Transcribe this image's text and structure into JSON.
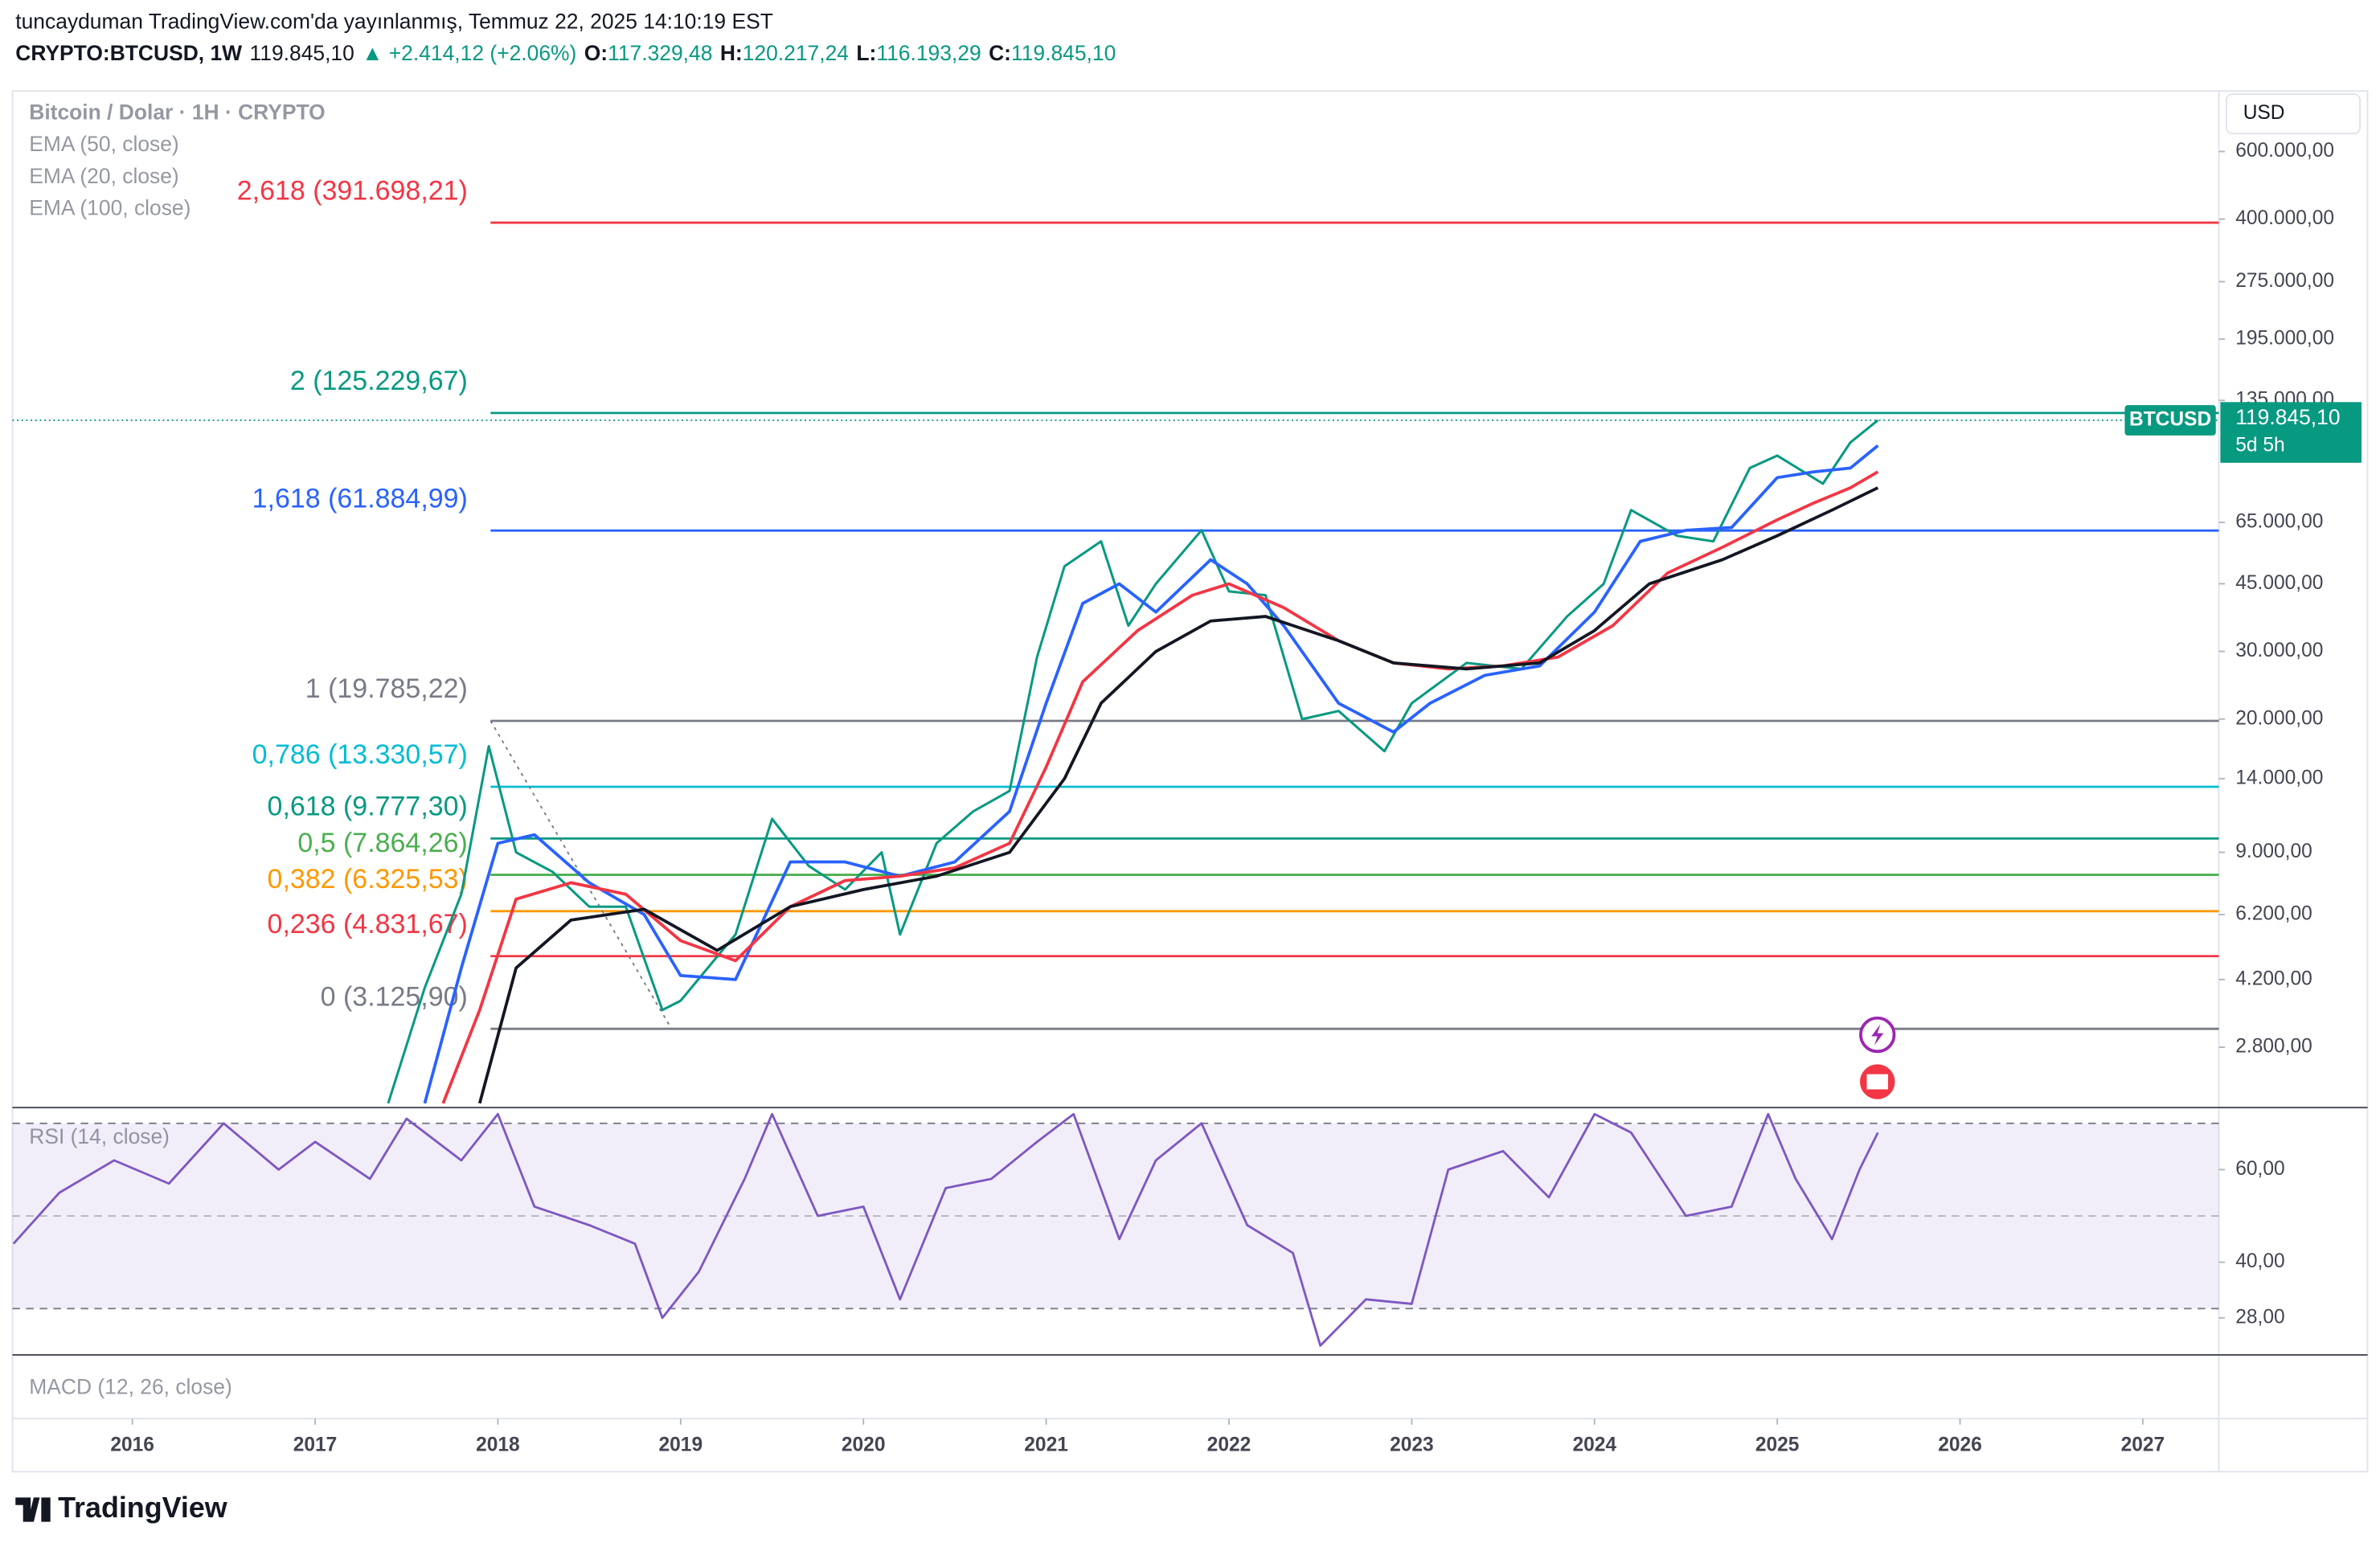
{
  "header": {
    "publisher": "tuncayduman TradingView.com'da yayınlanmış, Temmuz 22, 2025 14:10:19 EST",
    "symbol": "CRYPTO:BTCUSD, 1W",
    "last": "119.845,10",
    "change": "▲ +2.414,12 (+2.06%)",
    "ohlc": [
      {
        "key": "O:",
        "value": "117.329,48"
      },
      {
        "key": "H:",
        "value": "120.217,24"
      },
      {
        "key": "L:",
        "value": "116.193,29"
      },
      {
        "key": "C:",
        "value": "119.845,10"
      }
    ]
  },
  "legend": [
    "Bitcoin / Dolar · 1H · CRYPTO",
    "EMA (50, close)",
    "EMA (20, close)",
    "EMA (100, close)"
  ],
  "axis_unit": "USD",
  "footer": "TradingView",
  "chart_data": {
    "type": "line",
    "log_scale": true,
    "xlim": [
      2015.344,
      2027.416
    ],
    "xticks": [
      2016,
      2017,
      2018,
      2019,
      2020,
      2021,
      2022,
      2023,
      2024,
      2025,
      2026,
      2027
    ],
    "ylim": [
      1950,
      862000
    ],
    "yticks": [
      {
        "value": 600000,
        "label": "600.000,00"
      },
      {
        "value": 400000,
        "label": "400.000,00"
      },
      {
        "value": 275000,
        "label": "275.000,00"
      },
      {
        "value": 195000,
        "label": "195.000,00"
      },
      {
        "value": 135000,
        "label": "135.000,00"
      },
      {
        "value": 65000,
        "label": "65.000,00"
      },
      {
        "value": 45000,
        "label": "45.000,00"
      },
      {
        "value": 30000,
        "label": "30.000,00"
      },
      {
        "value": 20000,
        "label": "20.000,00"
      },
      {
        "value": 14000,
        "label": "14.000,00"
      },
      {
        "value": 9000,
        "label": "9.000,00"
      },
      {
        "value": 6200,
        "label": "6.200,00"
      },
      {
        "value": 4200,
        "label": "4.200,00"
      },
      {
        "value": 2800,
        "label": "2.800,00"
      }
    ],
    "series": [
      {
        "name": "BTCUSD",
        "color": "#089981",
        "width": 1.6,
        "x": [
          2017.4,
          2017.6,
          2017.8,
          2017.95,
          2018.1,
          2018.3,
          2018.5,
          2018.7,
          2018.9,
          2019.0,
          2019.3,
          2019.5,
          2019.7,
          2019.9,
          2020.1,
          2020.2,
          2020.4,
          2020.6,
          2020.8,
          2020.95,
          2021.1,
          2021.3,
          2021.45,
          2021.6,
          2021.85,
          2022.0,
          2022.2,
          2022.4,
          2022.6,
          2022.85,
          2023.0,
          2023.3,
          2023.6,
          2023.85,
          2024.05,
          2024.2,
          2024.45,
          2024.65,
          2024.85,
          2025.0,
          2025.25,
          2025.4,
          2025.55
        ],
        "values": [
          2000,
          4000,
          7000,
          17000,
          9000,
          8000,
          6500,
          6500,
          3500,
          3700,
          5500,
          11000,
          8300,
          7200,
          9000,
          5500,
          9500,
          11500,
          13000,
          29000,
          50000,
          58000,
          35000,
          45000,
          62000,
          43000,
          42000,
          20000,
          21000,
          16500,
          22000,
          28000,
          27000,
          37000,
          45000,
          70000,
          60000,
          58000,
          90000,
          97000,
          82000,
          105000,
          119845.1
        ]
      },
      {
        "name": "EMA (20, close)",
        "color": "#2962ff",
        "width": 2,
        "x": [
          2017.6,
          2017.8,
          2018.0,
          2018.2,
          2018.5,
          2018.8,
          2019.0,
          2019.3,
          2019.6,
          2019.9,
          2020.2,
          2020.5,
          2020.8,
          2021.0,
          2021.2,
          2021.4,
          2021.6,
          2021.9,
          2022.1,
          2022.3,
          2022.6,
          2022.9,
          2023.1,
          2023.4,
          2023.7,
          2024.0,
          2024.25,
          2024.5,
          2024.75,
          2025.0,
          2025.2,
          2025.4,
          2025.55
        ],
        "values": [
          2000,
          4500,
          9500,
          10000,
          7500,
          6200,
          4300,
          4200,
          8500,
          8500,
          7800,
          8500,
          11500,
          22000,
          40000,
          45000,
          38000,
          52000,
          45000,
          35000,
          22000,
          18500,
          22000,
          26000,
          27500,
          38000,
          58000,
          62000,
          63000,
          85000,
          88000,
          90000,
          103000
        ]
      },
      {
        "name": "EMA (50, close)",
        "color": "#f23645",
        "width": 2,
        "x": [
          2017.7,
          2017.9,
          2018.1,
          2018.4,
          2018.7,
          2019.0,
          2019.3,
          2019.6,
          2019.9,
          2020.2,
          2020.5,
          2020.8,
          2021.0,
          2021.2,
          2021.5,
          2021.8,
          2022.0,
          2022.3,
          2022.6,
          2022.9,
          2023.2,
          2023.5,
          2023.8,
          2024.1,
          2024.4,
          2024.7,
          2025.0,
          2025.2,
          2025.4,
          2025.55
        ],
        "values": [
          2000,
          3500,
          6800,
          7500,
          7000,
          5300,
          4700,
          6500,
          7600,
          7800,
          8200,
          9500,
          15000,
          25000,
          34000,
          42000,
          45000,
          39000,
          32000,
          28000,
          27000,
          27500,
          29000,
          35000,
          48000,
          56000,
          66000,
          73000,
          80000,
          88000
        ]
      },
      {
        "name": "EMA (100, close)",
        "color": "#131722",
        "width": 2,
        "x": [
          2017.9,
          2018.1,
          2018.4,
          2018.8,
          2019.2,
          2019.6,
          2020.0,
          2020.4,
          2020.8,
          2021.1,
          2021.3,
          2021.6,
          2021.9,
          2022.2,
          2022.6,
          2022.9,
          2023.3,
          2023.7,
          2024.0,
          2024.3,
          2024.7,
          2025.0,
          2025.3,
          2025.55
        ],
        "values": [
          2000,
          4500,
          6000,
          6400,
          5000,
          6500,
          7200,
          7800,
          9000,
          14000,
          22000,
          30000,
          36000,
          37000,
          32000,
          28000,
          27000,
          28000,
          34000,
          45000,
          52000,
          60000,
          70000,
          80000
        ]
      }
    ],
    "fib_levels": [
      {
        "label": "2,618 (391.698,21)",
        "price": 391698.21,
        "color": "#f23645"
      },
      {
        "label": "2 (125.229,67)",
        "price": 125229.67,
        "color": "#089981"
      },
      {
        "label": "1,618 (61.884,99)",
        "price": 61884.99,
        "color": "#2962ff"
      },
      {
        "label": "1 (19.785,22)",
        "price": 19785.22,
        "color": "#787b86"
      },
      {
        "label": "0,786 (13.330,57)",
        "price": 13330.57,
        "color": "#00bcd4"
      },
      {
        "label": "0,618 (9.777,30)",
        "price": 9777.3,
        "color": "#089981"
      },
      {
        "label": "0,5 (7.864,26)",
        "price": 7864.26,
        "color": "#4caf50"
      },
      {
        "label": "0,382 (6.325,53)",
        "price": 6325.53,
        "color": "#ff9800"
      },
      {
        "label": "0,236 (4.831,67)",
        "price": 4831.67,
        "color": "#f23645"
      },
      {
        "label": "0 (3.125,90)",
        "price": 3125.9,
        "color": "#787b86"
      }
    ],
    "last_price": {
      "tag": "BTCUSD",
      "value": 119845.1,
      "label": "119.845,10",
      "countdown": "5d 5h",
      "color": "#089981"
    },
    "rsi": {
      "title": "RSI (14, close)",
      "color": "#7e57c2",
      "ylim": [
        20,
        73.4
      ],
      "yticks": [
        {
          "value": 60,
          "label": "60,00"
        },
        {
          "value": 40,
          "label": "40,00"
        },
        {
          "value": 28,
          "label": "28,00"
        }
      ],
      "bands": [
        70,
        50,
        30
      ],
      "x": [
        2015.35,
        2015.6,
        2015.9,
        2016.2,
        2016.5,
        2016.8,
        2017.0,
        2017.3,
        2017.5,
        2017.8,
        2018.0,
        2018.2,
        2018.5,
        2018.75,
        2018.9,
        2019.1,
        2019.35,
        2019.5,
        2019.75,
        2020.0,
        2020.2,
        2020.45,
        2020.7,
        2020.95,
        2021.15,
        2021.4,
        2021.6,
        2021.85,
        2022.1,
        2022.35,
        2022.5,
        2022.75,
        2023.0,
        2023.2,
        2023.5,
        2023.75,
        2024.0,
        2024.2,
        2024.5,
        2024.75,
        2024.95,
        2025.1,
        2025.3,
        2025.45,
        2025.55
      ],
      "values": [
        44,
        55,
        62,
        57,
        70,
        60,
        66,
        58,
        71,
        62,
        72,
        52,
        48,
        44,
        28,
        38,
        58,
        72,
        50,
        52,
        32,
        56,
        58,
        66,
        72,
        45,
        62,
        70,
        48,
        42,
        22,
        32,
        31,
        60,
        64,
        54,
        72,
        68,
        50,
        52,
        72,
        58,
        45,
        60,
        68
      ]
    },
    "macd": {
      "title": "MACD (12, 26, close)"
    }
  }
}
